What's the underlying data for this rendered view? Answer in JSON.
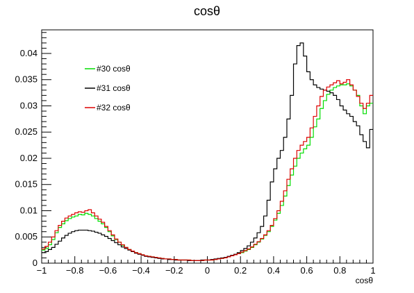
{
  "chart_data": {
    "type": "line",
    "title": "cosθ",
    "xlabel": "cosθ",
    "ylabel": "",
    "xlim": [
      -1,
      1
    ],
    "ylim": [
      0,
      0.0445
    ],
    "x_ticks": [
      -1,
      -0.8,
      -0.6,
      -0.4,
      -0.2,
      0,
      0.2,
      0.4,
      0.6,
      0.8,
      1
    ],
    "x_tick_labels": [
      "−1",
      "−0.8",
      "−0.6",
      "−0.4",
      "−0.2",
      "0",
      "0.2",
      "0.4",
      "0.6",
      "0.8",
      "1"
    ],
    "y_ticks": [
      0,
      0.005,
      0.01,
      0.015,
      0.02,
      0.025,
      0.03,
      0.035,
      0.04
    ],
    "y_tick_labels": [
      "0",
      "0.005",
      "0.01",
      "0.015",
      "0.02",
      "0.025",
      "0.03",
      "0.035",
      "0.04"
    ],
    "grid": false,
    "legend_position": "top-left",
    "bin_edges": [
      -1,
      1
    ],
    "n_bins": 100,
    "series": [
      {
        "name": "#30 cosθ",
        "color": "#00dd00",
        "values": [
          0.0025,
          0.0028,
          0.0035,
          0.0045,
          0.0058,
          0.0068,
          0.0075,
          0.0081,
          0.0085,
          0.0088,
          0.009,
          0.0093,
          0.0092,
          0.0095,
          0.0093,
          0.009,
          0.0085,
          0.008,
          0.0075,
          0.0068,
          0.006,
          0.0052,
          0.0045,
          0.004,
          0.0034,
          0.003,
          0.0026,
          0.0022,
          0.002,
          0.0018,
          0.0016,
          0.0014,
          0.0013,
          0.0012,
          0.0011,
          0.001,
          0.0009,
          0.0008,
          0.0008,
          0.0007,
          0.0007,
          0.0006,
          0.0006,
          0.0006,
          0.0006,
          0.0005,
          0.0005,
          0.0005,
          0.0005,
          0.0006,
          0.0006,
          0.0006,
          0.0007,
          0.0008,
          0.0009,
          0.001,
          0.0012,
          0.0014,
          0.0016,
          0.0018,
          0.002,
          0.0023,
          0.0026,
          0.003,
          0.0035,
          0.004,
          0.0046,
          0.0053,
          0.006,
          0.007,
          0.0082,
          0.0095,
          0.011,
          0.0128,
          0.0148,
          0.0168,
          0.0185,
          0.02,
          0.021,
          0.0218,
          0.0225,
          0.024,
          0.026,
          0.0275,
          0.0295,
          0.031,
          0.0322,
          0.033,
          0.0335,
          0.0338,
          0.034,
          0.034,
          0.0342,
          0.0338,
          0.033,
          0.032,
          0.03,
          0.0285,
          0.03,
          0.0305
        ]
      },
      {
        "name": "#31 cosθ",
        "color": "#000000",
        "values": [
          0.002,
          0.0022,
          0.0026,
          0.003,
          0.0036,
          0.0042,
          0.0048,
          0.0053,
          0.0057,
          0.006,
          0.0062,
          0.0063,
          0.0063,
          0.0063,
          0.0062,
          0.0061,
          0.0059,
          0.0057,
          0.0054,
          0.0051,
          0.0047,
          0.0043,
          0.0039,
          0.0035,
          0.0031,
          0.0028,
          0.0025,
          0.0022,
          0.0019,
          0.0017,
          0.0015,
          0.0013,
          0.0012,
          0.0011,
          0.001,
          0.0009,
          0.0008,
          0.0008,
          0.0007,
          0.0007,
          0.0006,
          0.0006,
          0.0006,
          0.0006,
          0.0005,
          0.0005,
          0.0005,
          0.0005,
          0.0006,
          0.0006,
          0.0006,
          0.0007,
          0.0008,
          0.0009,
          0.001,
          0.0011,
          0.0013,
          0.0015,
          0.0017,
          0.002,
          0.0024,
          0.0028,
          0.0033,
          0.004,
          0.0048,
          0.0058,
          0.007,
          0.009,
          0.012,
          0.0155,
          0.018,
          0.02,
          0.0215,
          0.024,
          0.0275,
          0.032,
          0.038,
          0.0415,
          0.042,
          0.0395,
          0.0365,
          0.035,
          0.034,
          0.0335,
          0.0332,
          0.033,
          0.0328,
          0.0325,
          0.032,
          0.0312,
          0.03,
          0.0292,
          0.0285,
          0.028,
          0.027,
          0.0262,
          0.0245,
          0.0232,
          0.022,
          0.0255
        ]
      },
      {
        "name": "#32 cosθ",
        "color": "#dd0000",
        "values": [
          0.0027,
          0.0032,
          0.004,
          0.005,
          0.0062,
          0.0072,
          0.008,
          0.0086,
          0.009,
          0.0093,
          0.0096,
          0.0098,
          0.0097,
          0.01,
          0.0102,
          0.0096,
          0.009,
          0.0084,
          0.0078,
          0.007,
          0.0062,
          0.0054,
          0.0046,
          0.004,
          0.0035,
          0.003,
          0.0026,
          0.0023,
          0.002,
          0.0018,
          0.0016,
          0.0014,
          0.0013,
          0.0012,
          0.0011,
          0.001,
          0.0009,
          0.0008,
          0.0008,
          0.0007,
          0.0007,
          0.0006,
          0.0006,
          0.0006,
          0.0006,
          0.0005,
          0.0005,
          0.0005,
          0.0005,
          0.0006,
          0.0006,
          0.0006,
          0.0007,
          0.0008,
          0.0009,
          0.001,
          0.0012,
          0.0014,
          0.0016,
          0.0018,
          0.0021,
          0.0024,
          0.0027,
          0.0031,
          0.0036,
          0.0041,
          0.0047,
          0.0054,
          0.0062,
          0.0072,
          0.0085,
          0.01,
          0.0118,
          0.0138,
          0.016,
          0.018,
          0.02,
          0.0215,
          0.0225,
          0.0232,
          0.024,
          0.0258,
          0.028,
          0.03,
          0.0318,
          0.033,
          0.0336,
          0.034,
          0.0344,
          0.0348,
          0.0342,
          0.0345,
          0.035,
          0.034,
          0.033,
          0.0318,
          0.0305,
          0.0295,
          0.0305,
          0.032
        ]
      }
    ]
  }
}
